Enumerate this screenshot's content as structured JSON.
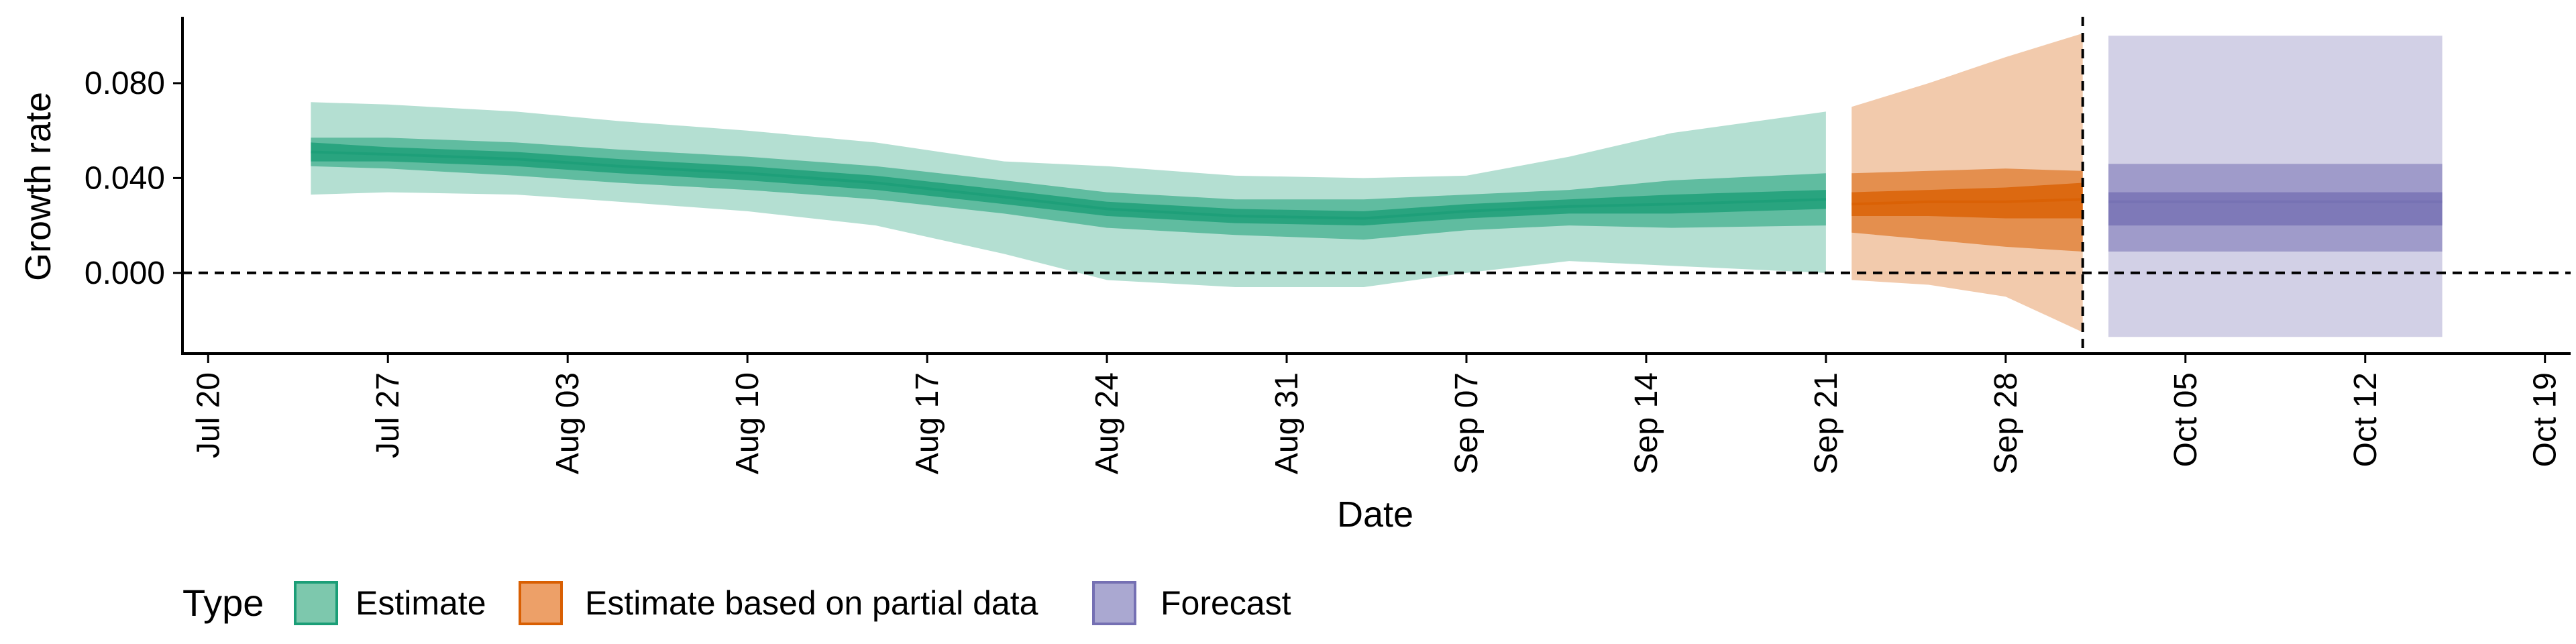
{
  "chart_data": {
    "type": "area",
    "title": "",
    "xlabel": "Date",
    "ylabel": "Growth rate",
    "x_range": [
      "2020-07-19",
      "2020-10-20"
    ],
    "ylim": [
      -0.034,
      0.108
    ],
    "yticks": [
      0.0,
      0.04,
      0.08
    ],
    "ytick_labels": [
      "0.000",
      "0.040",
      "0.080"
    ],
    "xticks": [
      "2020-07-20",
      "2020-07-27",
      "2020-08-03",
      "2020-08-10",
      "2020-08-17",
      "2020-08-24",
      "2020-08-31",
      "2020-09-07",
      "2020-09-14",
      "2020-09-21",
      "2020-09-28",
      "2020-10-05",
      "2020-10-12",
      "2020-10-19"
    ],
    "xtick_labels": [
      "Jul 20",
      "Jul 27",
      "Aug 03",
      "Aug 10",
      "Aug 17",
      "Aug 24",
      "Aug 31",
      "Sep 07",
      "Sep 14",
      "Sep 21",
      "Sep 28",
      "Oct 05",
      "Oct 12",
      "Oct 19"
    ],
    "zero_line": 0.0,
    "forecast_start_line": "2020-10-01",
    "grid": false,
    "legend": {
      "title": "Type",
      "position": "bottom-left",
      "entries": [
        {
          "name": "Estimate",
          "fill": "#7dc8ad",
          "stroke": "#1b9e77"
        },
        {
          "name": "Estimate based on partial data",
          "fill": "#eda068",
          "stroke": "#d95f02"
        },
        {
          "name": "Forecast",
          "fill": "#aaa8d1",
          "stroke": "#7570b3"
        }
      ]
    },
    "series": [
      {
        "name": "Estimate",
        "color": "#1b9e77",
        "points": [
          {
            "date": "2020-07-24",
            "median": 0.051,
            "lo50": 0.047,
            "hi50": 0.055,
            "lo90": 0.045,
            "hi90": 0.057,
            "lo95": 0.033,
            "hi95": 0.072
          },
          {
            "date": "2020-07-27",
            "median": 0.05,
            "lo50": 0.047,
            "hi50": 0.053,
            "lo90": 0.044,
            "hi90": 0.057,
            "lo95": 0.034,
            "hi95": 0.071
          },
          {
            "date": "2020-08-01",
            "median": 0.048,
            "lo50": 0.045,
            "hi50": 0.051,
            "lo90": 0.041,
            "hi90": 0.055,
            "lo95": 0.033,
            "hi95": 0.068
          },
          {
            "date": "2020-08-05",
            "median": 0.045,
            "lo50": 0.042,
            "hi50": 0.048,
            "lo90": 0.038,
            "hi90": 0.052,
            "lo95": 0.03,
            "hi95": 0.064
          },
          {
            "date": "2020-08-10",
            "median": 0.042,
            "lo50": 0.039,
            "hi50": 0.045,
            "lo90": 0.035,
            "hi90": 0.049,
            "lo95": 0.026,
            "hi95": 0.06
          },
          {
            "date": "2020-08-15",
            "median": 0.038,
            "lo50": 0.035,
            "hi50": 0.041,
            "lo90": 0.031,
            "hi90": 0.045,
            "lo95": 0.02,
            "hi95": 0.055
          },
          {
            "date": "2020-08-20",
            "median": 0.032,
            "lo50": 0.029,
            "hi50": 0.035,
            "lo90": 0.025,
            "hi90": 0.039,
            "lo95": 0.008,
            "hi95": 0.047
          },
          {
            "date": "2020-08-24",
            "median": 0.027,
            "lo50": 0.024,
            "hi50": 0.03,
            "lo90": 0.019,
            "hi90": 0.034,
            "lo95": -0.003,
            "hi95": 0.045
          },
          {
            "date": "2020-08-29",
            "median": 0.024,
            "lo50": 0.021,
            "hi50": 0.027,
            "lo90": 0.016,
            "hi90": 0.031,
            "lo95": -0.006,
            "hi95": 0.041
          },
          {
            "date": "2020-09-03",
            "median": 0.023,
            "lo50": 0.02,
            "hi50": 0.026,
            "lo90": 0.014,
            "hi90": 0.031,
            "lo95": -0.006,
            "hi95": 0.04
          },
          {
            "date": "2020-09-07",
            "median": 0.026,
            "lo50": 0.023,
            "hi50": 0.029,
            "lo90": 0.018,
            "hi90": 0.033,
            "lo95": 0.0,
            "hi95": 0.041
          },
          {
            "date": "2020-09-11",
            "median": 0.028,
            "lo50": 0.025,
            "hi50": 0.031,
            "lo90": 0.02,
            "hi90": 0.035,
            "lo95": 0.005,
            "hi95": 0.049
          },
          {
            "date": "2020-09-15",
            "median": 0.029,
            "lo50": 0.025,
            "hi50": 0.033,
            "lo90": 0.019,
            "hi90": 0.039,
            "lo95": 0.003,
            "hi95": 0.059
          },
          {
            "date": "2020-09-21",
            "median": 0.031,
            "lo50": 0.027,
            "hi50": 0.035,
            "lo90": 0.02,
            "hi90": 0.042,
            "lo95": 0.0,
            "hi95": 0.068
          }
        ]
      },
      {
        "name": "Estimate based on partial data",
        "color": "#d95f02",
        "points": [
          {
            "date": "2020-09-22",
            "median": 0.029,
            "lo50": 0.024,
            "hi50": 0.034,
            "lo90": 0.017,
            "hi90": 0.042,
            "lo95": -0.003,
            "hi95": 0.07
          },
          {
            "date": "2020-09-25",
            "median": 0.03,
            "lo50": 0.024,
            "hi50": 0.035,
            "lo90": 0.014,
            "hi90": 0.043,
            "lo95": -0.005,
            "hi95": 0.08
          },
          {
            "date": "2020-09-28",
            "median": 0.03,
            "lo50": 0.023,
            "hi50": 0.036,
            "lo90": 0.011,
            "hi90": 0.044,
            "lo95": -0.01,
            "hi95": 0.091
          },
          {
            "date": "2020-10-01",
            "median": 0.031,
            "lo50": 0.023,
            "hi50": 0.038,
            "lo90": 0.009,
            "hi90": 0.043,
            "lo95": -0.025,
            "hi95": 0.101
          }
        ]
      },
      {
        "name": "Forecast",
        "color": "#7570b3",
        "points": [
          {
            "date": "2020-10-02",
            "median": 0.03,
            "lo50": 0.02,
            "hi50": 0.034,
            "lo90": 0.009,
            "hi90": 0.046,
            "lo95": -0.027,
            "hi95": 0.1
          },
          {
            "date": "2020-10-15",
            "median": 0.03,
            "lo50": 0.02,
            "hi50": 0.034,
            "lo90": 0.009,
            "hi90": 0.046,
            "lo95": -0.027,
            "hi95": 0.1
          }
        ]
      }
    ]
  }
}
